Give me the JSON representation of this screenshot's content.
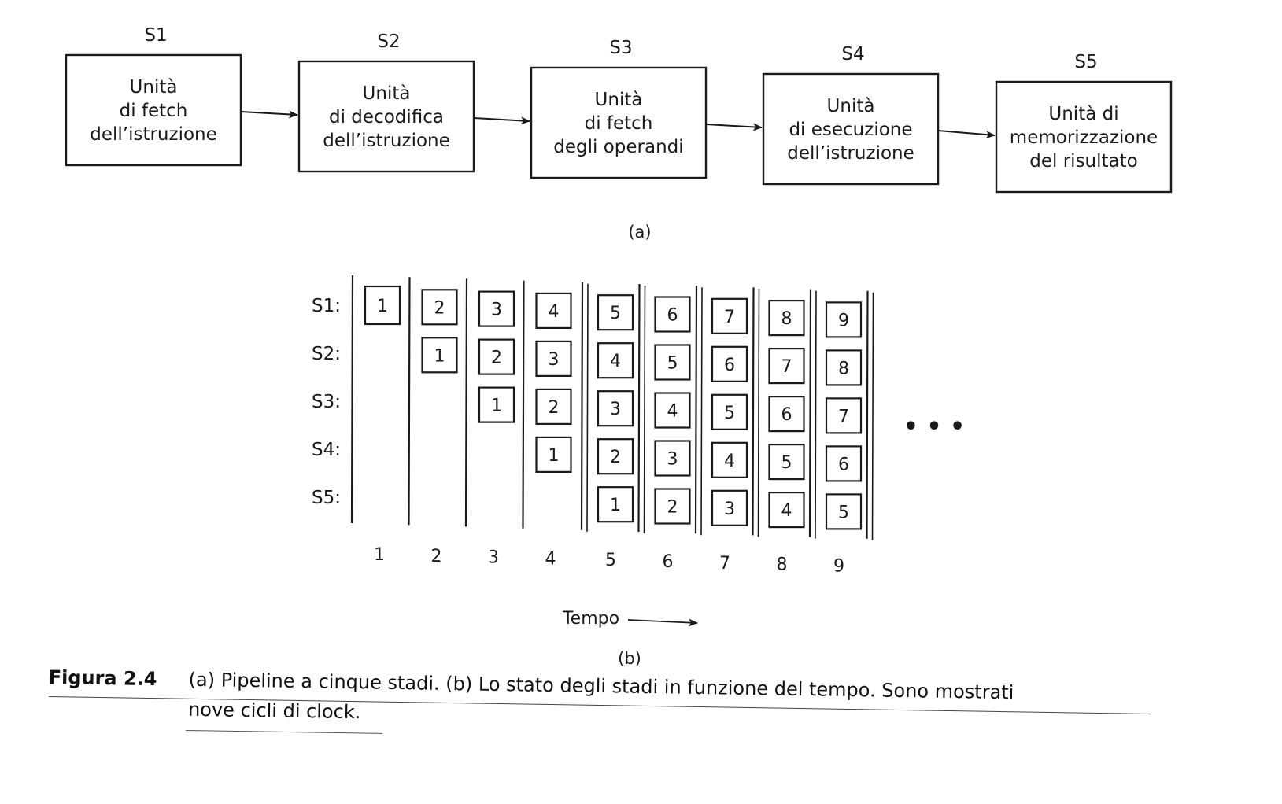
{
  "pipeline": {
    "stages": [
      {
        "id": "S1",
        "lines": [
          "Unità",
          "di fetch",
          "dell’istruzione"
        ]
      },
      {
        "id": "S2",
        "lines": [
          "Unità",
          "di decodifica",
          "dell’istruzione"
        ]
      },
      {
        "id": "S3",
        "lines": [
          "Unità",
          "di fetch",
          "degli operandi"
        ]
      },
      {
        "id": "S4",
        "lines": [
          "Unità",
          "di esecuzione",
          "dell’istruzione"
        ]
      },
      {
        "id": "S5",
        "lines": [
          "Unità di",
          "memorizzazione",
          "del risultato"
        ]
      }
    ],
    "caption": "(a)"
  },
  "timing": {
    "row_labels": [
      "S1:",
      "S2:",
      "S3:",
      "S4:",
      "S5:"
    ],
    "cycles": [
      "1",
      "2",
      "3",
      "4",
      "5",
      "6",
      "7",
      "8",
      "9"
    ],
    "continuation": "• • •",
    "axis_label": "Tempo",
    "caption": "(b)"
  },
  "caption": {
    "label": "Figura 2.4",
    "line1": "(a) Pipeline a cinque stadi. (b) Lo stato degli stadi in funzione del tempo. Sono mostrati",
    "line2": "nove cicli di clock."
  },
  "colors": {
    "ink": "#1a1a1a",
    "paper": "#ffffff"
  }
}
